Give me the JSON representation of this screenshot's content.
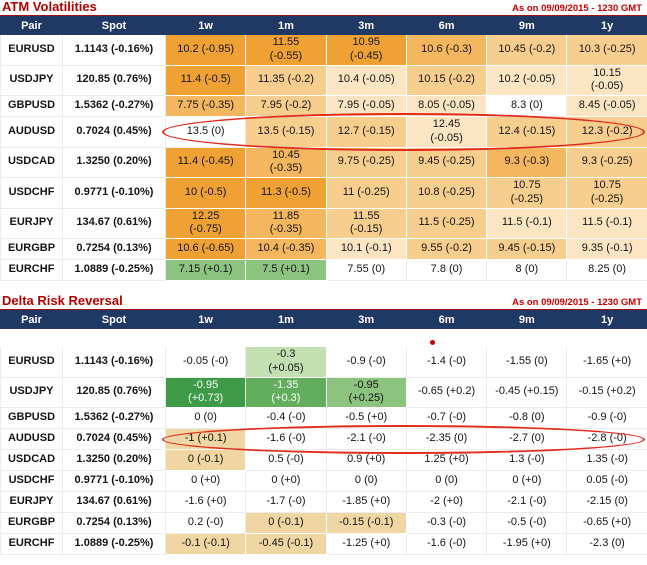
{
  "colors": {
    "title_red": "#B30000",
    "timestamp_red": "#CC0000",
    "header_bg": "#1F3864",
    "header_text": "#FFFFFF",
    "annotation_red": "#E02B1D",
    "palette": {
      "w": "#FFFFFF",
      "o1": "#F0A134",
      "o2": "#F4B75F",
      "o3": "#F8CE8E",
      "o4": "#FBE5C2",
      "tan": "#EFD6A2",
      "g1": "#3D9A47",
      "g2": "#63AE5D",
      "g3": "#8CC47F",
      "gl": "#C2E0B2"
    }
  },
  "annotations": {
    "circled_pair": "AUDUSD",
    "red_dot": {
      "section": 1,
      "row_pair": "EURUSD",
      "column": "6m"
    }
  },
  "chart_data": [
    {
      "type": "heatmap",
      "title": "ATM Volatilities",
      "timestamp": "As on 09/09/2015 - 1230 GMT",
      "columns": [
        "Pair",
        "Spot",
        "1w",
        "1m",
        "3m",
        "6m",
        "9m",
        "1y"
      ],
      "leading_blank_row": false,
      "rows": [
        {
          "pair": "EURUSD",
          "spot": "1.1143 (-0.16%)",
          "cells": [
            {
              "text": "10.2 (-0.95)",
              "bg": "o1"
            },
            {
              "text": "11.55\n(-0.55)",
              "bg": "o1"
            },
            {
              "text": "10.95\n(-0.45)",
              "bg": "o1"
            },
            {
              "text": "10.6 (-0.3)",
              "bg": "o2"
            },
            {
              "text": "10.45 (-0.2)",
              "bg": "o3"
            },
            {
              "text": "10.3 (-0.25)",
              "bg": "o3"
            }
          ]
        },
        {
          "pair": "USDJPY",
          "spot": "120.85 (0.76%)",
          "cells": [
            {
              "text": "11.4 (-0.5)",
              "bg": "o1"
            },
            {
              "text": "11.35 (-0.2)",
              "bg": "o3"
            },
            {
              "text": "10.4 (-0.05)",
              "bg": "o4"
            },
            {
              "text": "10.15 (-0.2)",
              "bg": "o3"
            },
            {
              "text": "10.2 (-0.05)",
              "bg": "o4"
            },
            {
              "text": "10.15\n(-0.05)",
              "bg": "o4"
            }
          ]
        },
        {
          "pair": "GBPUSD",
          "spot": "1.5362 (-0.27%)",
          "cells": [
            {
              "text": "7.75 (-0.35)",
              "bg": "o2"
            },
            {
              "text": "7.95 (-0.2)",
              "bg": "o3"
            },
            {
              "text": "7.95 (-0.05)",
              "bg": "o4"
            },
            {
              "text": "8.05 (-0.05)",
              "bg": "o4"
            },
            {
              "text": "8.3 (0)",
              "bg": "w"
            },
            {
              "text": "8.45 (-0.05)",
              "bg": "o4"
            }
          ]
        },
        {
          "pair": "AUDUSD",
          "spot": "0.7024 (0.45%)",
          "circled": true,
          "cells": [
            {
              "text": "13.5 (0)",
              "bg": "w"
            },
            {
              "text": "13.5 (-0.15)",
              "bg": "o3"
            },
            {
              "text": "12.7 (-0.15)",
              "bg": "o3"
            },
            {
              "text": "12.45\n(-0.05)",
              "bg": "o4"
            },
            {
              "text": "12.4 (-0.15)",
              "bg": "o3"
            },
            {
              "text": "12.3 (-0.2)",
              "bg": "o3"
            }
          ]
        },
        {
          "pair": "USDCAD",
          "spot": "1.3250 (0.20%)",
          "cells": [
            {
              "text": "11.4 (-0.45)",
              "bg": "o1"
            },
            {
              "text": "10.45\n(-0.35)",
              "bg": "o2"
            },
            {
              "text": "9.75 (-0.25)",
              "bg": "o3"
            },
            {
              "text": "9.45 (-0.25)",
              "bg": "o3"
            },
            {
              "text": "9.3 (-0.3)",
              "bg": "o2"
            },
            {
              "text": "9.3 (-0.25)",
              "bg": "o3"
            }
          ]
        },
        {
          "pair": "USDCHF",
          "spot": "0.9771 (-0.10%)",
          "cells": [
            {
              "text": "10 (-0.5)",
              "bg": "o1"
            },
            {
              "text": "11.3 (-0.5)",
              "bg": "o1"
            },
            {
              "text": "11 (-0.25)",
              "bg": "o3"
            },
            {
              "text": "10.8 (-0.25)",
              "bg": "o3"
            },
            {
              "text": "10.75\n(-0.25)",
              "bg": "o3"
            },
            {
              "text": "10.75\n(-0.25)",
              "bg": "o3"
            }
          ]
        },
        {
          "pair": "EURJPY",
          "spot": "134.67 (0.61%)",
          "cells": [
            {
              "text": "12.25\n(-0.75)",
              "bg": "o1"
            },
            {
              "text": "11.85\n(-0.35)",
              "bg": "o2"
            },
            {
              "text": "11.55\n(-0.15)",
              "bg": "o3"
            },
            {
              "text": "11.5 (-0.25)",
              "bg": "o3"
            },
            {
              "text": "11.5 (-0.1)",
              "bg": "o4"
            },
            {
              "text": "11.5 (-0.1)",
              "bg": "o4"
            }
          ]
        },
        {
          "pair": "EURGBP",
          "spot": "0.7254 (0.13%)",
          "cells": [
            {
              "text": "10.6 (-0.65)",
              "bg": "o1"
            },
            {
              "text": "10.4 (-0.35)",
              "bg": "o2"
            },
            {
              "text": "10.1 (-0.1)",
              "bg": "o4"
            },
            {
              "text": "9.55 (-0.2)",
              "bg": "o3"
            },
            {
              "text": "9.45 (-0.15)",
              "bg": "o3"
            },
            {
              "text": "9.35 (-0.1)",
              "bg": "o4"
            }
          ]
        },
        {
          "pair": "EURCHF",
          "spot": "1.0889 (-0.25%)",
          "cells": [
            {
              "text": "7.15 (+0.1)",
              "bg": "g3"
            },
            {
              "text": "7.5 (+0.1)",
              "bg": "g3"
            },
            {
              "text": "7.55 (0)",
              "bg": "w"
            },
            {
              "text": "7.8 (0)",
              "bg": "w"
            },
            {
              "text": "8 (0)",
              "bg": "w"
            },
            {
              "text": "8.25 (0)",
              "bg": "w"
            }
          ]
        }
      ]
    },
    {
      "type": "heatmap",
      "title": "Delta Risk Reversal",
      "timestamp": "As on 09/09/2015 - 1230 GMT",
      "columns": [
        "Pair",
        "Spot",
        "1w",
        "1m",
        "3m",
        "6m",
        "9m",
        "1y"
      ],
      "leading_blank_row": true,
      "rows": [
        {
          "pair": "EURUSD",
          "spot": "1.1143 (-0.16%)",
          "cells": [
            {
              "text": "-0.05 (-0)",
              "bg": "w"
            },
            {
              "text": "-0.3\n(+0.05)",
              "bg": "gl"
            },
            {
              "text": "-0.9 (-0)",
              "bg": "w"
            },
            {
              "text": "-1.4 (-0)",
              "bg": "w"
            },
            {
              "text": "-1.55 (0)",
              "bg": "w"
            },
            {
              "text": "-1.65 (+0)",
              "bg": "w"
            }
          ]
        },
        {
          "pair": "USDJPY",
          "spot": "120.85 (0.76%)",
          "cells": [
            {
              "text": "-0.95\n(+0.73)",
              "bg": "g1",
              "fg": "#FFFFFF"
            },
            {
              "text": "-1.35\n(+0.3)",
              "bg": "g2",
              "fg": "#FFFFFF"
            },
            {
              "text": "-0.95\n(+0.25)",
              "bg": "g3"
            },
            {
              "text": "-0.65 (+0.2)",
              "bg": "w"
            },
            {
              "text": "-0.45 (+0.15)",
              "bg": "w"
            },
            {
              "text": "-0.15 (+0.2)",
              "bg": "w"
            }
          ]
        },
        {
          "pair": "GBPUSD",
          "spot": "1.5362 (-0.27%)",
          "cells": [
            {
              "text": "0 (0)",
              "bg": "w"
            },
            {
              "text": "-0.4 (-0)",
              "bg": "w"
            },
            {
              "text": "-0.5 (+0)",
              "bg": "w"
            },
            {
              "text": "-0.7 (-0)",
              "bg": "w"
            },
            {
              "text": "-0.8 (0)",
              "bg": "w"
            },
            {
              "text": "-0.9 (-0)",
              "bg": "w"
            }
          ]
        },
        {
          "pair": "AUDUSD",
          "spot": "0.7024 (0.45%)",
          "circled": true,
          "cells": [
            {
              "text": "-1 (+0.1)",
              "bg": "tan"
            },
            {
              "text": "-1.6 (-0)",
              "bg": "w"
            },
            {
              "text": "-2.1 (-0)",
              "bg": "w"
            },
            {
              "text": "-2.35 (0)",
              "bg": "w"
            },
            {
              "text": "-2.7 (0)",
              "bg": "w"
            },
            {
              "text": "-2.8 (-0)",
              "bg": "w"
            }
          ]
        },
        {
          "pair": "USDCAD",
          "spot": "1.3250 (0.20%)",
          "cells": [
            {
              "text": "0 (-0.1)",
              "bg": "tan"
            },
            {
              "text": "0.5 (-0)",
              "bg": "w"
            },
            {
              "text": "0.9 (+0)",
              "bg": "w"
            },
            {
              "text": "1.25 (+0)",
              "bg": "w"
            },
            {
              "text": "1.3 (-0)",
              "bg": "w"
            },
            {
              "text": "1.35 (-0)",
              "bg": "w"
            }
          ]
        },
        {
          "pair": "USDCHF",
          "spot": "0.9771 (-0.10%)",
          "cells": [
            {
              "text": "0 (+0)",
              "bg": "w"
            },
            {
              "text": "0 (+0)",
              "bg": "w"
            },
            {
              "text": "0 (0)",
              "bg": "w"
            },
            {
              "text": "0 (0)",
              "bg": "w"
            },
            {
              "text": "0 (+0)",
              "bg": "w"
            },
            {
              "text": "0.05 (-0)",
              "bg": "w"
            }
          ]
        },
        {
          "pair": "EURJPY",
          "spot": "134.67 (0.61%)",
          "cells": [
            {
              "text": "-1.6 (+0)",
              "bg": "w"
            },
            {
              "text": "-1.7 (-0)",
              "bg": "w"
            },
            {
              "text": "-1.85 (+0)",
              "bg": "w"
            },
            {
              "text": "-2 (+0)",
              "bg": "w"
            },
            {
              "text": "-2.1 (-0)",
              "bg": "w"
            },
            {
              "text": "-2.15 (0)",
              "bg": "w"
            }
          ]
        },
        {
          "pair": "EURGBP",
          "spot": "0.7254 (0.13%)",
          "cells": [
            {
              "text": "0.2 (-0)",
              "bg": "w"
            },
            {
              "text": "0 (-0.1)",
              "bg": "tan"
            },
            {
              "text": "-0.15 (-0.1)",
              "bg": "tan"
            },
            {
              "text": "-0.3 (-0)",
              "bg": "w"
            },
            {
              "text": "-0.5 (-0)",
              "bg": "w"
            },
            {
              "text": "-0.65 (+0)",
              "bg": "w"
            }
          ]
        },
        {
          "pair": "EURCHF",
          "spot": "1.0889 (-0.25%)",
          "cells": [
            {
              "text": "-0.1 (-0.1)",
              "bg": "tan"
            },
            {
              "text": "-0.45 (-0.1)",
              "bg": "tan"
            },
            {
              "text": "-1.25 (+0)",
              "bg": "w"
            },
            {
              "text": "-1.6 (-0)",
              "bg": "w"
            },
            {
              "text": "-1.95 (+0)",
              "bg": "w"
            },
            {
              "text": "-2.3 (0)",
              "bg": "w"
            }
          ]
        }
      ]
    }
  ]
}
